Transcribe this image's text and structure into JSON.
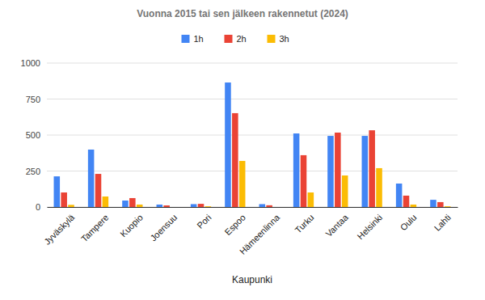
{
  "chart_data": {
    "type": "bar",
    "title": "Vuonna 2015 tai sen jälkeen rakennetut (2024)",
    "x_label": "Kaupunki",
    "categories": [
      "Jyväskylä",
      "Tampere",
      "Kuopio",
      "Joensuu",
      "Pori",
      "Espoo",
      "Hämeenlinna",
      "Turku",
      "Vantaa",
      "Helsinki",
      "Oulu",
      "Lahti"
    ],
    "series": [
      {
        "name": "1h",
        "color": "#4285f4",
        "values": [
          213,
          399,
          45,
          17,
          20,
          865,
          20,
          511,
          494,
          494,
          163,
          50
        ]
      },
      {
        "name": "2h",
        "color": "#ea4335",
        "values": [
          101,
          230,
          62,
          11,
          22,
          652,
          12,
          360,
          517,
          533,
          79,
          34
        ]
      },
      {
        "name": "3h",
        "color": "#fbbc04",
        "values": [
          15,
          73,
          17,
          0,
          5,
          320,
          0,
          101,
          219,
          270,
          17,
          5
        ]
      }
    ],
    "ylim": [
      0,
      1000
    ],
    "yticks": [
      0,
      250,
      500,
      750,
      1000
    ],
    "grid": true,
    "legend": "top"
  }
}
